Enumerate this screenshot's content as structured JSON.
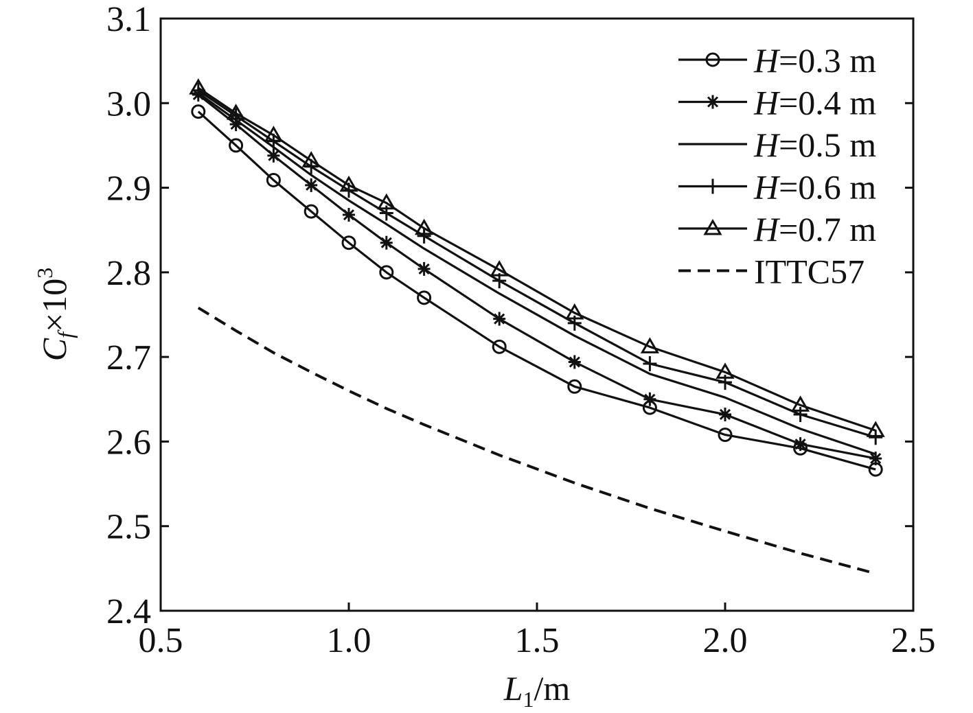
{
  "chart_data": {
    "type": "line",
    "title": "",
    "xlabel": {
      "var": "L",
      "sub": "1",
      "unit": "/m"
    },
    "ylabel": {
      "var": "C",
      "sub": "f",
      "mult": "×10",
      "sup": "3"
    },
    "xlim": [
      0.5,
      2.5
    ],
    "ylim": [
      2.4,
      3.1
    ],
    "xticks": [
      "0.5",
      "1.0",
      "1.5",
      "2.0",
      "2.5"
    ],
    "yticks": [
      "2.4",
      "2.5",
      "2.6",
      "2.7",
      "2.8",
      "2.9",
      "3.0",
      "3.1"
    ],
    "grid": false,
    "legend_position": "top-right",
    "x": [
      0.6,
      0.7,
      0.8,
      0.9,
      1.0,
      1.1,
      1.2,
      1.4,
      1.6,
      1.8,
      2.0,
      2.2,
      2.4
    ],
    "series": [
      {
        "name": "H=0.3 m",
        "var": "H",
        "value": "=0.3 m",
        "marker": "circle",
        "style": "solid",
        "values": [
          2.99,
          2.95,
          2.909,
          2.872,
          2.835,
          2.8,
          2.77,
          2.712,
          2.665,
          2.64,
          2.608,
          2.592,
          2.567
        ]
      },
      {
        "name": "H=0.4 m",
        "var": "H",
        "value": "=0.4 m",
        "marker": "star",
        "style": "solid",
        "values": [
          3.01,
          2.975,
          2.938,
          2.903,
          2.868,
          2.835,
          2.804,
          2.745,
          2.694,
          2.65,
          2.632,
          2.597,
          2.58
        ]
      },
      {
        "name": "H=0.5 m",
        "var": "H",
        "value": "=0.5 m",
        "marker": "none",
        "style": "solid",
        "values": [
          3.012,
          2.98,
          2.948,
          2.915,
          2.885,
          2.857,
          2.828,
          2.775,
          2.725,
          2.68,
          2.652,
          2.615,
          2.585
        ]
      },
      {
        "name": "H=0.6 m",
        "var": "H",
        "value": "=0.6 m",
        "marker": "plus",
        "style": "solid",
        "values": [
          3.015,
          2.985,
          2.955,
          2.925,
          2.897,
          2.87,
          2.843,
          2.79,
          2.74,
          2.692,
          2.67,
          2.632,
          2.605
        ]
      },
      {
        "name": "H=0.7 m",
        "var": "H",
        "value": "=0.7 m",
        "marker": "triangle",
        "style": "solid",
        "values": [
          3.018,
          2.988,
          2.962,
          2.932,
          2.903,
          2.882,
          2.852,
          2.803,
          2.752,
          2.712,
          2.682,
          2.643,
          2.613
        ]
      },
      {
        "name": "ITTC57",
        "var": "",
        "value": "ITTC57",
        "marker": "none",
        "style": "dashed",
        "values": [
          2.758,
          2.731,
          2.705,
          2.682,
          2.66,
          2.639,
          2.62,
          2.584,
          2.551,
          2.521,
          2.494,
          2.468,
          2.444
        ]
      }
    ]
  }
}
